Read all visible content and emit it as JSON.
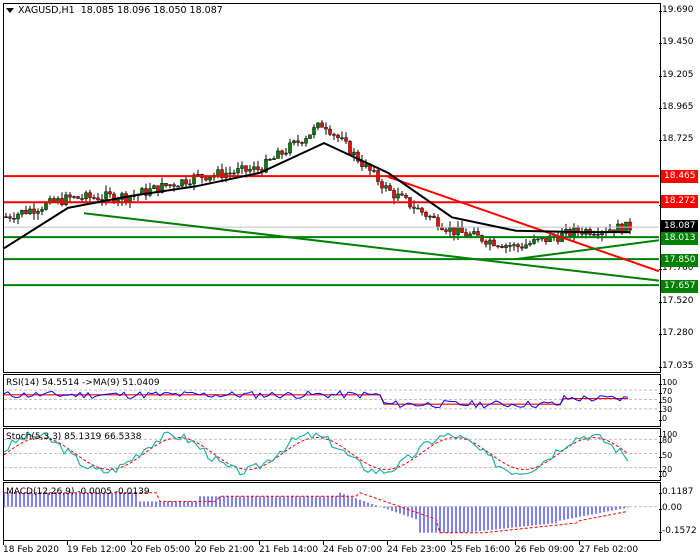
{
  "window": {
    "symbol": "XAGUSD,H1",
    "ohlc": "18.085 18.096 18.050 18.087",
    "open": "18.085",
    "high": "18.096",
    "low": "18.050",
    "close": "18.087"
  },
  "price_axis": {
    "ticks": [
      "19.690",
      "19.450",
      "19.205",
      "18.965",
      "18.725",
      "18.240",
      "17.760",
      "17.520",
      "17.280",
      "17.035"
    ],
    "current_price": "18.087",
    "resistance_labels": [
      "18.465",
      "18.272"
    ],
    "support_labels": [
      "18.013",
      "17.850",
      "17.657"
    ]
  },
  "indicators": {
    "rsi": {
      "label": "RSI(14) 54.5514  ->MA(9) 51.0409",
      "ticks": [
        "100",
        "70",
        "50",
        "30",
        "0"
      ]
    },
    "stoch": {
      "label": "Stoch(5,3,3) 85.1319 66.5338",
      "ticks": [
        "100",
        "80",
        "50",
        "20",
        "0"
      ]
    },
    "macd": {
      "label": "MACD(12,26,9) -0.0005 -0.0139",
      "ticks": [
        "0.1187",
        "0.00",
        "-0.1572"
      ]
    }
  },
  "time_axis": {
    "labels": [
      "18 Feb 2020",
      "19 Feb 12:00",
      "20 Feb 05:00",
      "20 Feb 21:00",
      "21 Feb 14:00",
      "24 Feb 07:00",
      "24 Feb 23:00",
      "25 Feb 16:00",
      "26 Feb 09:00",
      "27 Feb 02:00"
    ]
  },
  "colors": {
    "bull": "#008000",
    "bear": "#ff0000",
    "resistance": "#ff0000",
    "support": "#008000",
    "ma": "#000000",
    "rsi": "#0000ff",
    "rsi_ma": "#ff0000",
    "stoch_main": "#20b2aa",
    "stoch_signal": "#ff0000",
    "macd_hist": "#0000ff",
    "macd_signal": "#ff0000",
    "current": "#000000"
  },
  "chart_data": [
    {
      "type": "candlestick",
      "title": "XAGUSD,H1",
      "ylim": [
        17.035,
        19.69
      ],
      "yticks": [
        19.69,
        19.45,
        19.205,
        18.965,
        18.725,
        18.24,
        17.76,
        17.52,
        17.28,
        17.035
      ],
      "xlabels": [
        "18 Feb 2020",
        "19 Feb 12:00",
        "20 Feb 05:00",
        "20 Feb 21:00",
        "21 Feb 14:00",
        "24 Feb 07:00",
        "24 Feb 23:00",
        "25 Feb 16:00",
        "26 Feb 09:00",
        "27 Feb 02:00"
      ],
      "last_ohlc": {
        "open": 18.085,
        "high": 18.096,
        "low": 18.05,
        "close": 18.087
      },
      "horizontal_levels": [
        {
          "price": 18.465,
          "color": "red",
          "role": "resistance"
        },
        {
          "price": 18.272,
          "color": "red",
          "role": "resistance"
        },
        {
          "price": 18.013,
          "color": "green",
          "role": "support"
        },
        {
          "price": 17.85,
          "color": "green",
          "role": "support"
        },
        {
          "price": 17.657,
          "color": "green",
          "role": "support"
        }
      ],
      "trendlines": [
        {
          "color": "red",
          "from": {
            "x": "24 Feb 23:00",
            "y": 18.46
          },
          "to": {
            "x": "27 Feb end",
            "y": 17.76
          }
        },
        {
          "color": "green",
          "from": {
            "x": "19 Feb 12:00",
            "y": 18.19
          },
          "to": {
            "x": "27 Feb end",
            "y": 17.69
          }
        },
        {
          "color": "green",
          "from": {
            "x": "26 Feb 09:00",
            "y": 17.85
          },
          "to": {
            "x": "27 Feb end",
            "y": 17.99
          }
        }
      ],
      "moving_average_path": [
        {
          "x": "18 Feb 2020",
          "y": 17.93
        },
        {
          "x": "19 Feb 12:00",
          "y": 18.23
        },
        {
          "x": "20 Feb 05:00",
          "y": 18.32
        },
        {
          "x": "20 Feb 21:00",
          "y": 18.39
        },
        {
          "x": "21 Feb 14:00",
          "y": 18.49
        },
        {
          "x": "24 Feb 07:00",
          "y": 18.71
        },
        {
          "x": "24 Feb 23:00",
          "y": 18.49
        },
        {
          "x": "25 Feb 16:00",
          "y": 18.16
        },
        {
          "x": "26 Feb 09:00",
          "y": 18.06
        },
        {
          "x": "27 Feb 02:00",
          "y": 18.05
        }
      ],
      "approx_close_path": [
        {
          "x": "18 Feb 2020",
          "y": 18.16
        },
        {
          "x": "19 Feb 12:00",
          "y": 18.3
        },
        {
          "x": "20 Feb 05:00",
          "y": 18.32
        },
        {
          "x": "20 Feb 21:00",
          "y": 18.46
        },
        {
          "x": "21 Feb 14:00",
          "y": 18.52
        },
        {
          "x": "24 Feb 07:00",
          "y": 18.86
        },
        {
          "x": "24 Feb 23:00",
          "y": 18.36
        },
        {
          "x": "25 Feb 16:00",
          "y": 18.06
        },
        {
          "x": "26 Feb 09:00",
          "y": 17.94
        },
        {
          "x": "27 Feb 02:00",
          "y": 18.06
        }
      ],
      "high_approx": 18.93,
      "low_approx": 17.84
    },
    {
      "type": "line",
      "title": "RSI(14) 54.5514 ->MA(9) 51.0409",
      "ylim": [
        0,
        100
      ],
      "levels": [
        70,
        50,
        30
      ],
      "series": [
        {
          "name": "RSI(14)",
          "last": 54.5514
        },
        {
          "name": "MA(9)",
          "last": 51.0409
        }
      ]
    },
    {
      "type": "line",
      "title": "Stoch(5,3,3) 85.1319 66.5338",
      "ylim": [
        0,
        100
      ],
      "levels": [
        80,
        50,
        20
      ],
      "series": [
        {
          "name": "%K",
          "last": 85.1319
        },
        {
          "name": "%D",
          "last": 66.5338
        }
      ]
    },
    {
      "type": "bar",
      "title": "MACD(12,26,9) -0.0005 -0.0139",
      "ylim": [
        -0.1572,
        0.1187
      ],
      "levels": [
        0
      ],
      "series": [
        {
          "name": "MACD",
          "last": -0.0005
        },
        {
          "name": "Signal",
          "last": -0.0139
        }
      ]
    }
  ]
}
